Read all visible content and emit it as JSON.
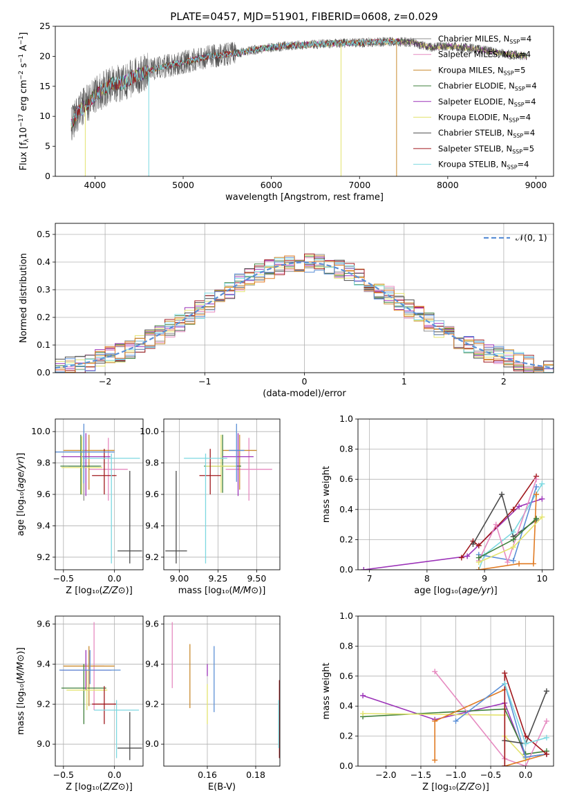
{
  "title": "PLATE=0457, MJD=51901, FIBERID=0608, z=0.029",
  "colors": {
    "Chabrier MILES": "#8f8f8f",
    "Salpeter MILES": "#e68ac0",
    "Kroupa MILES": "#c98a2e",
    "Chabrier ELODIE": "#3e7f3a",
    "Salpeter ELODIE": "#9b32b8",
    "Kroupa ELODIE": "#e3e36e",
    "Chabrier STELIB": "#4a4a4a",
    "Salpeter STELIB": "#a0171c",
    "Kroupa STELIB": "#7cd8e0",
    "model_blue": "#5b8fd6",
    "model_orange": "#e07a22",
    "model_green": "#8fc43a"
  },
  "legend1": [
    {
      "label": "Chabrier MILES, N",
      "sub": "SSP",
      "tail": "=4",
      "color": "#8f8f8f"
    },
    {
      "label": "Salpeter MILES, N",
      "sub": "SSP",
      "tail": "=4",
      "color": "#e68ac0"
    },
    {
      "label": "Kroupa MILES, N",
      "sub": "SSP",
      "tail": "=5",
      "color": "#c98a2e"
    },
    {
      "label": "Chabrier ELODIE, N",
      "sub": "SSP",
      "tail": "=4",
      "color": "#3e7f3a"
    },
    {
      "label": "Salpeter ELODIE, N",
      "sub": "SSP",
      "tail": "=4",
      "color": "#9b32b8"
    },
    {
      "label": "Kroupa ELODIE, N",
      "sub": "SSP",
      "tail": "=4",
      "color": "#e3e36e"
    },
    {
      "label": "Chabrier STELIB, N",
      "sub": "SSP",
      "tail": "=4",
      "color": "#4a4a4a"
    },
    {
      "label": "Salpeter STELIB, N",
      "sub": "SSP",
      "tail": "=5",
      "color": "#a0171c"
    },
    {
      "label": "Kroupa STELIB, N",
      "sub": "SSP",
      "tail": "=4",
      "color": "#7cd8e0"
    }
  ],
  "legend2": {
    "label": "𝒩(0, 1)",
    "color": "#5b8fd6"
  },
  "chart_data": [
    {
      "type": "line",
      "title": "PLATE=0457, MJD=51901, FIBERID=0608, z=0.029",
      "xlabel": "wavelength [Angstrom, rest frame]",
      "ylabel": "Flux [f_λ 10^-17 erg cm^-2 s^-1 A^-1]",
      "xlim": [
        3550,
        9200
      ],
      "ylim": [
        0,
        25
      ],
      "xticks": [
        4000,
        5000,
        6000,
        7000,
        8000,
        9000
      ],
      "yticks": [
        0,
        5,
        10,
        15,
        20,
        25
      ],
      "spectrum_anchors": {
        "wavelength": [
          3720,
          3800,
          3900,
          4000,
          4100,
          4200,
          4300,
          4500,
          4700,
          5000,
          5300,
          5600,
          5900,
          6200,
          6500,
          6800,
          7100,
          7400,
          7600,
          7800,
          8000,
          8300,
          8600,
          8900
        ],
        "flux": [
          8.5,
          10.5,
          12.0,
          13.5,
          14.5,
          15.5,
          15.5,
          17.0,
          18.0,
          19.0,
          20.0,
          20.5,
          21.3,
          21.8,
          22.0,
          22.2,
          22.3,
          22.5,
          22.3,
          21.5,
          21.7,
          21.3,
          20.5,
          20.0
        ]
      },
      "dropouts": [
        {
          "wavelength": 3890,
          "to": 0,
          "series": "Kroupa ELODIE"
        },
        {
          "wavelength": 4610,
          "to": 0,
          "series": "Kroupa STELIB"
        },
        {
          "wavelength": 6790,
          "to": 0,
          "series": "Kroupa ELODIE"
        },
        {
          "wavelength": 7420,
          "to": 0,
          "series": "Kroupa MILES"
        }
      ]
    },
    {
      "type": "area",
      "xlabel": "(data-model)/error",
      "ylabel": "Normed distribution",
      "xlim": [
        -2.5,
        2.5
      ],
      "ylim": [
        0,
        0.54
      ],
      "xticks": [
        -2,
        -1,
        0,
        1,
        2
      ],
      "yticks": [
        0,
        0.1,
        0.2,
        0.3,
        0.4,
        0.5
      ],
      "bin_width": 0.1,
      "histogram_centers": [
        -2.45,
        -2.35,
        -2.25,
        -2.15,
        -2.05,
        -1.95,
        -1.85,
        -1.75,
        -1.65,
        -1.55,
        -1.45,
        -1.35,
        -1.25,
        -1.15,
        -1.05,
        -0.95,
        -0.85,
        -0.75,
        -0.65,
        -0.55,
        -0.45,
        -0.35,
        -0.25,
        -0.15,
        -0.05,
        0.05,
        0.15,
        0.25,
        0.35,
        0.45,
        0.55,
        0.65,
        0.75,
        0.85,
        0.95,
        1.05,
        1.15,
        1.25,
        1.35,
        1.45,
        1.55,
        1.65,
        1.75,
        1.85,
        1.95,
        2.05,
        2.15,
        2.25,
        2.35,
        2.45
      ],
      "reference_curve": "N(0,1)"
    },
    {
      "type": "scatter",
      "xlabel": "Z [log10(Z/Z⊙)]",
      "ylabel": "age [log10(age/yr)]",
      "xlim": [
        -0.58,
        0.28
      ],
      "ylim": [
        9.12,
        10.08
      ],
      "xticks": [
        -0.5,
        0.0
      ],
      "xticklabels": [
        "−0.5",
        "0.0"
      ],
      "yticks": [
        9.2,
        9.4,
        9.6,
        9.8,
        10.0
      ],
      "points": [
        {
          "series": "Chabrier MILES",
          "x": -0.3,
          "y": 9.78,
          "xerr": 0.15,
          "yerr": [
            0.22,
            0.2
          ]
        },
        {
          "series": "Salpeter MILES",
          "x": -0.06,
          "y": 9.76,
          "xerr": 0.19,
          "yerr": [
            0.2,
            0.2
          ]
        },
        {
          "series": "Kroupa MILES",
          "x": -0.25,
          "y": 9.88,
          "xerr": 0.25,
          "yerr": [
            0.25,
            0.1
          ]
        },
        {
          "series": "Chabrier ELODIE",
          "x": -0.33,
          "y": 9.78,
          "xerr": 0.2,
          "yerr": [
            0.18,
            0.2
          ]
        },
        {
          "series": "Salpeter ELODIE",
          "x": -0.28,
          "y": 9.84,
          "xerr": 0.24,
          "yerr": [
            0.25,
            0.15
          ]
        },
        {
          "series": "Kroupa ELODIE",
          "x": -0.32,
          "y": 9.77,
          "xerr": 0.2,
          "yerr": [
            0.17,
            0.2
          ]
        },
        {
          "series": "Chabrier STELIB",
          "x": 0.15,
          "y": 9.24,
          "xerr": 0.12,
          "yerr": [
            0.08,
            0.51
          ]
        },
        {
          "series": "Salpeter STELIB",
          "x": -0.1,
          "y": 9.72,
          "xerr": 0.12,
          "yerr": [
            0.12,
            0.17
          ]
        },
        {
          "series": "Kroupa STELIB",
          "x": -0.03,
          "y": 9.83,
          "xerr": 0.28,
          "yerr": [
            0.67,
            0.03
          ]
        },
        {
          "series": "model_blue",
          "x": -0.3,
          "y": 9.87,
          "xerr": 0.3,
          "yerr": [
            0.2,
            0.18
          ]
        }
      ]
    },
    {
      "type": "scatter",
      "xlabel": "mass [log10(M/M⊙)]",
      "ylabel": "",
      "xlim": [
        8.9,
        9.65
      ],
      "ylim": [
        9.12,
        10.08
      ],
      "xticks": [
        9.0,
        9.25,
        9.5
      ],
      "yticks": [
        9.2,
        9.4,
        9.6,
        9.8,
        10.0
      ],
      "points": [
        {
          "series": "Salpeter MILES",
          "x": 9.45,
          "y": 9.76,
          "xerr": 0.15,
          "yerr": [
            0.2,
            0.2
          ]
        },
        {
          "series": "Kroupa MILES",
          "x": 9.39,
          "y": 9.88,
          "xerr": 0.11,
          "yerr": [
            0.25,
            0.1
          ]
        },
        {
          "series": "Chabrier ELODIE",
          "x": 9.28,
          "y": 9.78,
          "xerr": 0.12,
          "yerr": [
            0.17,
            0.2
          ]
        },
        {
          "series": "Salpeter ELODIE",
          "x": 9.38,
          "y": 9.84,
          "xerr": 0.1,
          "yerr": [
            0.25,
            0.15
          ]
        },
        {
          "series": "Kroupa ELODIE",
          "x": 9.27,
          "y": 9.78,
          "xerr": 0.1,
          "yerr": [
            0.17,
            0.2
          ]
        },
        {
          "series": "Chabrier STELIB",
          "x": 8.98,
          "y": 9.24,
          "xerr": 0.07,
          "yerr": [
            0.08,
            0.51
          ]
        },
        {
          "series": "Salpeter STELIB",
          "x": 9.2,
          "y": 9.72,
          "xerr": 0.07,
          "yerr": [
            0.12,
            0.17
          ]
        },
        {
          "series": "Kroupa STELIB",
          "x": 9.17,
          "y": 9.83,
          "xerr": 0.14,
          "yerr": [
            0.67,
            0.03
          ]
        },
        {
          "series": "model_blue",
          "x": 9.37,
          "y": 9.88,
          "xerr": 0.05,
          "yerr": [
            0.2,
            0.17
          ]
        }
      ]
    },
    {
      "type": "line",
      "xlabel": "age [log10(age/yr)]",
      "ylabel": "mass weight",
      "xlim": [
        6.8,
        10.2
      ],
      "ylim": [
        0,
        1.0
      ],
      "xticks": [
        7,
        8,
        9,
        10
      ],
      "yticks": [
        0,
        0.2,
        0.4,
        0.6,
        0.8,
        1.0
      ],
      "series": [
        {
          "name": "Salpeter ELODIE",
          "x": [
            6.9,
            8.7,
            9.6,
            10.0
          ],
          "y": [
            0.0,
            0.09,
            0.42,
            0.47
          ]
        },
        {
          "name": "Salpeter STELIB",
          "x": [
            8.6,
            8.8,
            8.9,
            9.5,
            9.9
          ],
          "y": [
            0.08,
            0.19,
            0.16,
            0.4,
            0.62
          ]
        },
        {
          "name": "Chabrier STELIB",
          "x": [
            8.8,
            9.3,
            9.5,
            9.9
          ],
          "y": [
            0.17,
            0.5,
            0.22,
            0.33
          ]
        },
        {
          "name": "Kroupa STELIB",
          "x": [
            8.9,
            9.0,
            9.5,
            10.0
          ],
          "y": [
            0.0,
            0.1,
            0.25,
            0.57
          ]
        },
        {
          "name": "model_blue",
          "x": [
            8.9,
            9.5,
            9.9
          ],
          "y": [
            0.1,
            0.06,
            0.55
          ]
        },
        {
          "name": "Salpeter MILES",
          "x": [
            8.9,
            9.2,
            9.4,
            9.9
          ],
          "y": [
            0.06,
            0.3,
            0.05,
            0.6
          ]
        },
        {
          "name": "model_orange",
          "x": [
            8.9,
            9.6,
            9.85,
            9.9
          ],
          "y": [
            0.0,
            0.04,
            0.04,
            0.5
          ]
        },
        {
          "name": "Kroupa ELODIE",
          "x": [
            8.9,
            9.5,
            10.0
          ],
          "y": [
            0.05,
            0.15,
            0.35
          ]
        },
        {
          "name": "Chabrier ELODIE",
          "x": [
            8.9,
            9.5,
            9.9
          ],
          "y": [
            0.08,
            0.2,
            0.34
          ]
        }
      ]
    },
    {
      "type": "scatter",
      "xlabel": "Z [log10(Z/Z⊙)]",
      "ylabel": "mass [log10(M/M⊙)]",
      "xlim": [
        -0.58,
        0.28
      ],
      "ylim": [
        8.89,
        9.64
      ],
      "xticks": [
        -0.5,
        0.0
      ],
      "xticklabels": [
        "−0.5",
        "0.0"
      ],
      "yticks": [
        9.0,
        9.2,
        9.4,
        9.6
      ],
      "points": [
        {
          "series": "Salpeter MILES",
          "x": -0.2,
          "y": 9.39,
          "xerr": 0.1,
          "yerr": [
            0.22,
            0.22
          ]
        },
        {
          "series": "Kroupa MILES",
          "x": -0.25,
          "y": 9.39,
          "xerr": 0.25,
          "yerr": [
            0.2,
            0.1
          ]
        },
        {
          "series": "Chabrier ELODIE",
          "x": -0.3,
          "y": 9.28,
          "xerr": 0.22,
          "yerr": [
            0.18,
            0.12
          ]
        },
        {
          "series": "Salpeter ELODIE",
          "x": -0.28,
          "y": 9.37,
          "xerr": 0.25,
          "yerr": [
            0.1,
            0.1
          ]
        },
        {
          "series": "Kroupa ELODIE",
          "x": -0.27,
          "y": 9.27,
          "xerr": 0.2,
          "yerr": [
            0.1,
            0.1
          ]
        },
        {
          "series": "Chabrier STELIB",
          "x": 0.15,
          "y": 8.98,
          "xerr": 0.12,
          "yerr": [
            0.06,
            0.18
          ]
        },
        {
          "series": "Salpeter STELIB",
          "x": -0.1,
          "y": 9.2,
          "xerr": 0.12,
          "yerr": [
            0.1,
            0.09
          ]
        },
        {
          "series": "Kroupa STELIB",
          "x": 0.02,
          "y": 9.17,
          "xerr": 0.22,
          "yerr": [
            0.24,
            0.05
          ]
        },
        {
          "series": "model_blue",
          "x": -0.24,
          "y": 9.37,
          "xerr": 0.3,
          "yerr": [
            0.07,
            0.1
          ]
        }
      ]
    },
    {
      "type": "scatter",
      "xlabel": "E(B-V)",
      "ylabel": "",
      "xlim": [
        0.142,
        0.19
      ],
      "ylim": [
        8.89,
        9.64
      ],
      "xticks": [
        0.16,
        0.18
      ],
      "yticks": [
        9.0,
        9.2,
        9.4,
        9.6
      ],
      "points": [
        {
          "series": "Salpeter MILES",
          "x": 0.1455,
          "y": 9.45,
          "yerr": [
            0.17,
            0.16
          ]
        },
        {
          "series": "Kroupa MILES",
          "x": 0.1528,
          "y": 9.34,
          "yerr": [
            0.16,
            0.16
          ]
        },
        {
          "series": "Kroupa ELODIE",
          "x": 0.16,
          "y": 9.2,
          "yerr": [
            0.1,
            0.1
          ]
        },
        {
          "series": "Salpeter ELODIE",
          "x": 0.16,
          "y": 9.37,
          "yerr": [
            0.03,
            0.03
          ]
        },
        {
          "series": "model_blue",
          "x": 0.1628,
          "y": 9.33,
          "yerr": [
            0.17,
            0.16
          ]
        },
        {
          "series": "Salpeter STELIB",
          "x": 0.1898,
          "y": 9.1,
          "yerr": [
            0.17,
            0.22
          ]
        },
        {
          "series": "Kroupa STELIB",
          "x": 0.1895,
          "y": 9.1,
          "yerr": [
            0.12,
            0.12
          ]
        }
      ]
    },
    {
      "type": "line",
      "xlabel": "Z [log10(Z/Z⊙)]",
      "ylabel": "mass weight",
      "xlim": [
        -2.4,
        0.4
      ],
      "ylim": [
        0,
        1.0
      ],
      "xticks": [
        -2.0,
        -1.5,
        -1.0,
        -0.5,
        0.0
      ],
      "xticklabels": [
        "−2.0",
        "−1.5",
        "−1.0",
        "−0.5",
        "0.0"
      ],
      "yticks": [
        0,
        0.2,
        0.4,
        0.6,
        0.8,
        1.0
      ],
      "series": [
        {
          "name": "Salpeter ELODIE",
          "x": [
            -2.33,
            -1.3,
            -0.3,
            0.0,
            0.3
          ],
          "y": [
            0.47,
            0.31,
            0.42,
            0.06,
            0.08
          ]
        },
        {
          "name": "Chabrier ELODIE",
          "x": [
            -2.33,
            -0.3,
            0.0,
            0.3
          ],
          "y": [
            0.33,
            0.38,
            0.08,
            0.1
          ]
        },
        {
          "name": "Kroupa ELODIE",
          "x": [
            -2.33,
            -0.3,
            -0.3,
            0.0
          ],
          "y": [
            0.35,
            0.34,
            0.2,
            0.05
          ]
        },
        {
          "name": "Salpeter MILES",
          "x": [
            -1.3,
            -0.3,
            0.0,
            0.3
          ],
          "y": [
            0.63,
            0.05,
            0.0,
            0.3
          ]
        },
        {
          "name": "model_orange",
          "x": [
            -1.3,
            -1.3,
            -0.3,
            -0.3,
            0.3
          ],
          "y": [
            0.04,
            0.3,
            0.51,
            0.0,
            0.08
          ]
        },
        {
          "name": "model_blue",
          "x": [
            -1.0,
            -0.3,
            0.0,
            0.3
          ],
          "y": [
            0.3,
            0.55,
            0.06,
            0.08
          ]
        },
        {
          "name": "Chabrier STELIB",
          "x": [
            -0.3,
            0.0,
            0.3
          ],
          "y": [
            0.17,
            0.15,
            0.5
          ]
        },
        {
          "name": "Salpeter STELIB",
          "x": [
            -0.3,
            -0.3,
            0.0,
            0.3
          ],
          "y": [
            0.0,
            0.62,
            0.2,
            0.08
          ]
        },
        {
          "name": "Kroupa STELIB",
          "x": [
            -0.3,
            0.0,
            0.3
          ],
          "y": [
            0.55,
            0.15,
            0.19
          ]
        }
      ]
    }
  ]
}
